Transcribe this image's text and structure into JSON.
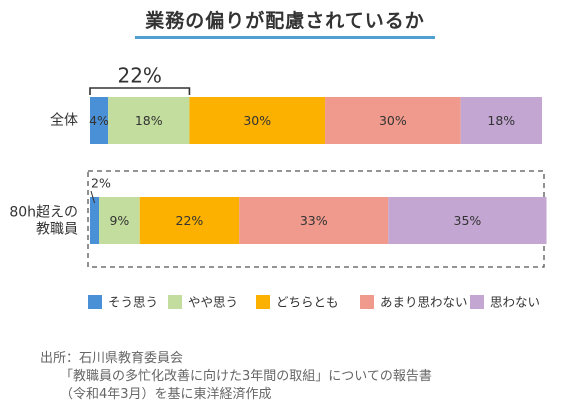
{
  "title": "業務の偏りが配慮されているか",
  "colors": {
    "title_underline": "#4f9fd3",
    "bracket": "#333333",
    "dashed_box": "#555555"
  },
  "chart_data": {
    "type": "bar",
    "orientation": "horizontal",
    "stacked": true,
    "unit": "%",
    "categories": [
      "全体",
      "80h超えの\n教職員"
    ],
    "series": [
      {
        "name": "そう思う",
        "color": "#4a90d6",
        "values": [
          4,
          2
        ]
      },
      {
        "name": "やや思う",
        "color": "#c3dd9e",
        "values": [
          18,
          9
        ]
      },
      {
        "name": "どちらとも",
        "color": "#fcb100",
        "values": [
          30,
          22
        ]
      },
      {
        "name": "あまり思わない",
        "color": "#ef9a8c",
        "values": [
          30,
          33
        ]
      },
      {
        "name": "思わない",
        "color": "#c3a6d2",
        "values": [
          18,
          35
        ]
      }
    ],
    "annotations": [
      {
        "category": "全体",
        "series_span": [
          0,
          1
        ],
        "text": "22%",
        "style": "bracket"
      }
    ],
    "legend_position": "bottom",
    "grid": false
  },
  "source": {
    "line1": "出所：石川県教育委員会",
    "line2": "「教職員の多忙化改善に向けた3年間の取組」についての報告書",
    "line3": "（令和4年3月）を基に東洋経済作成"
  }
}
